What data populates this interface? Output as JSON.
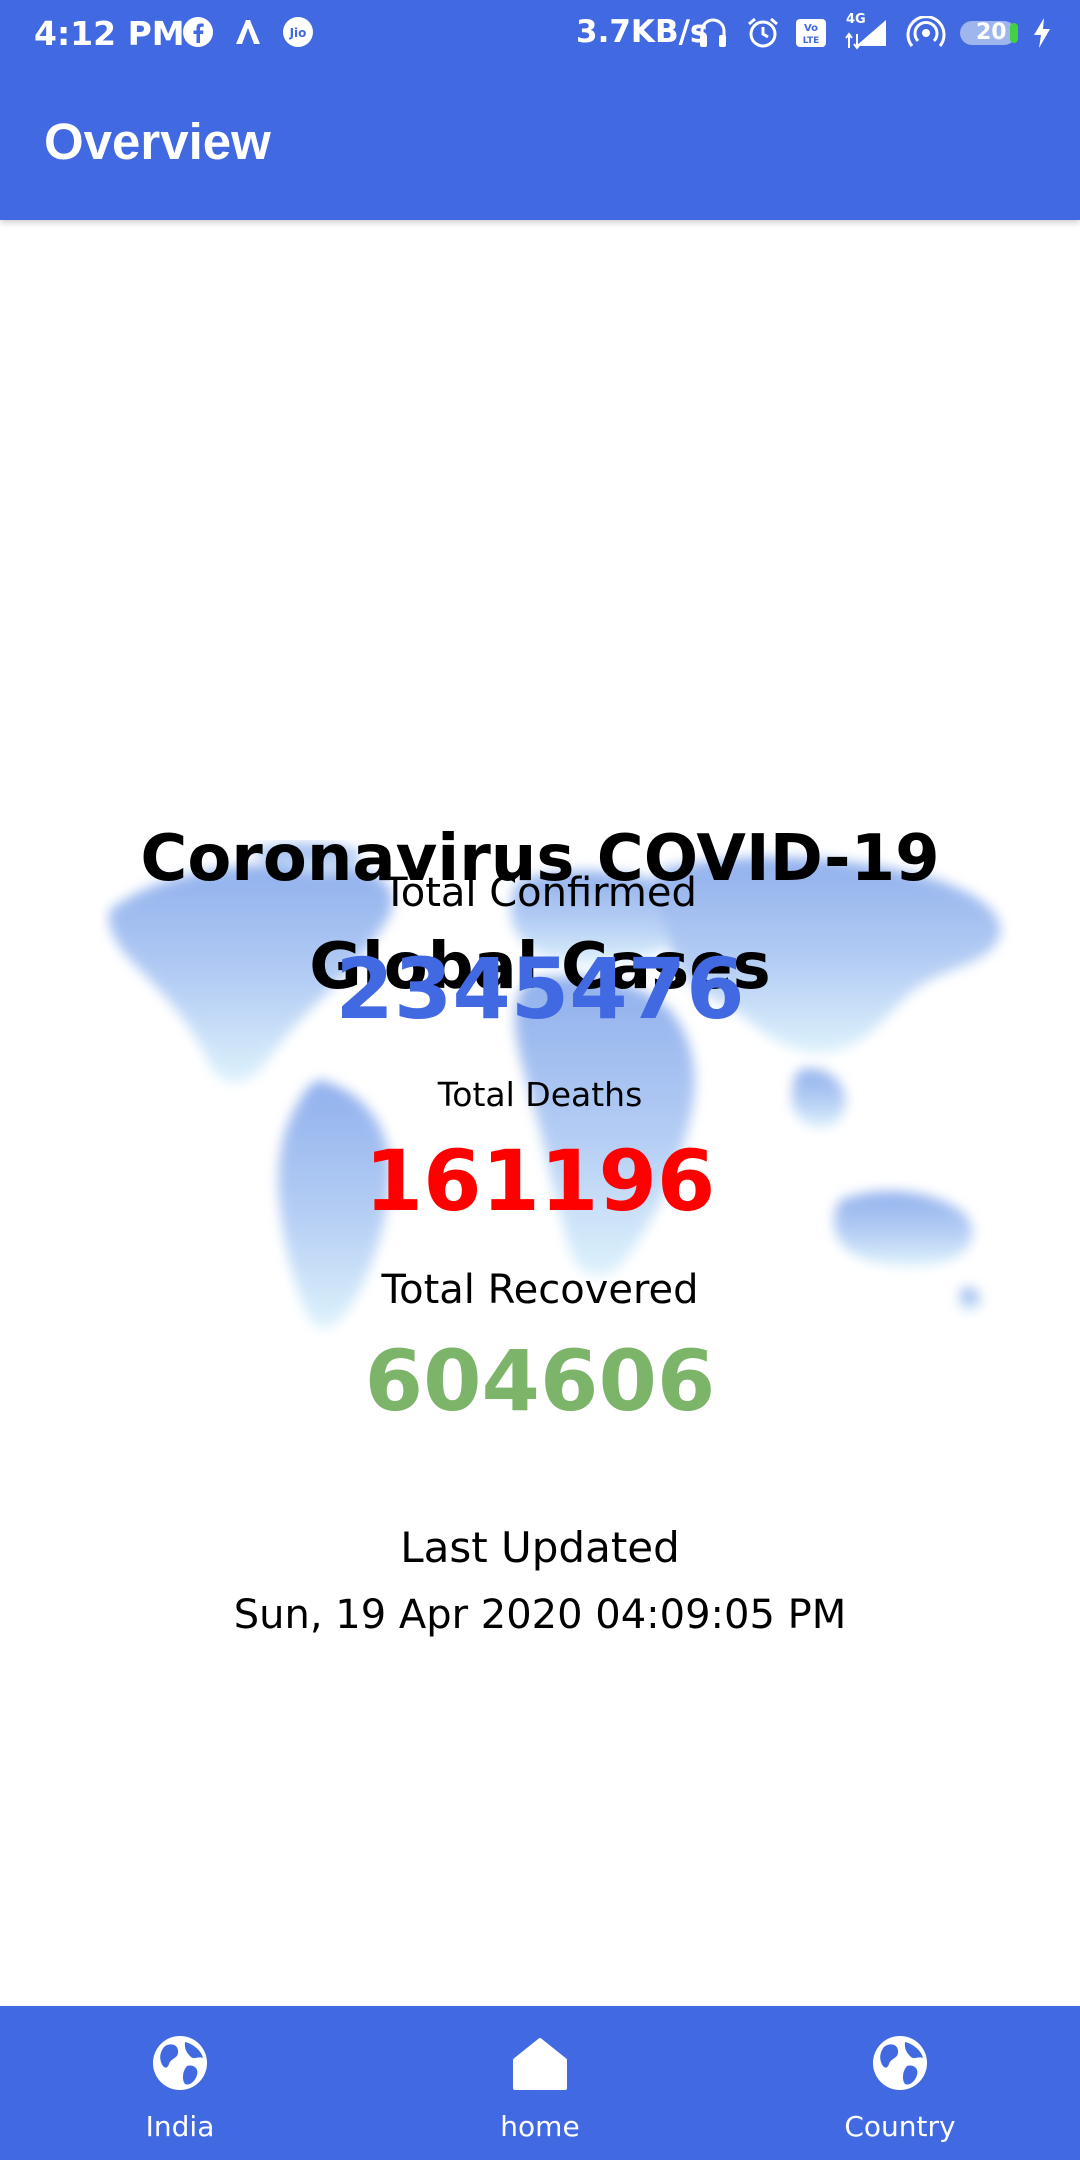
{
  "status_bar": {
    "time": "4:12 PM",
    "speed": "3.7KB/s",
    "network": "4G",
    "battery": "20",
    "icons": [
      "facebook-icon",
      "a-icon",
      "jio-icon",
      "headphones-icon",
      "alarm-icon",
      "volte-icon",
      "signal-icon",
      "hotspot-icon",
      "battery-icon",
      "charging-icon"
    ]
  },
  "app_bar": {
    "title": "Overview"
  },
  "headline": {
    "line1": "Coronavirus COVID-19",
    "line2": "Global Cases"
  },
  "stats": {
    "confirmed": {
      "label": "Total Confirmed",
      "value": "2345476",
      "color": "#4169e1"
    },
    "deaths": {
      "label": "Total Deaths",
      "value": "161196",
      "color": "#ff0000"
    },
    "recovered": {
      "label": "Total Recovered",
      "value": "604606",
      "color": "#7cb46a"
    }
  },
  "last_updated": {
    "label": "Last Updated",
    "value": "Sun, 19 Apr 2020 04:09:05 PM"
  },
  "bottom_nav": {
    "items": [
      {
        "label": "India",
        "icon": "globe-icon"
      },
      {
        "label": "home",
        "icon": "home-icon"
      },
      {
        "label": "Country",
        "icon": "globe-icon"
      }
    ]
  },
  "colors": {
    "primary": "#4169e1",
    "map": "#8fb2ee"
  }
}
